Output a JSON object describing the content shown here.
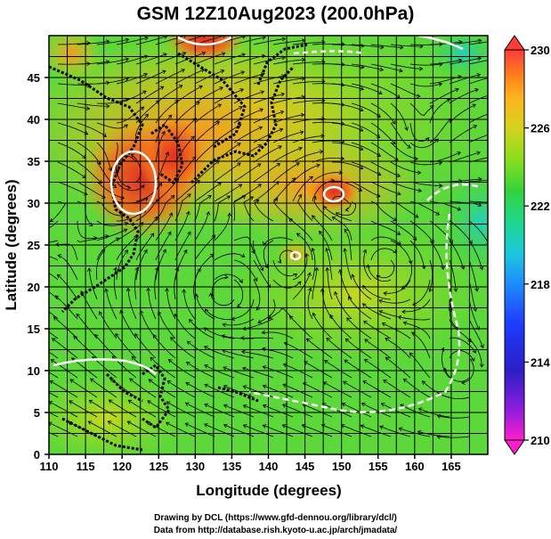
{
  "title": "GSM 12Z10Aug2023 (200.0hPa)",
  "map": {
    "xlabel": "Longitude (degrees)",
    "ylabel": "Latitude  (degrees)",
    "xticks": [
      110,
      115,
      120,
      125,
      130,
      135,
      140,
      145,
      150,
      155,
      160,
      165
    ],
    "yticks": [
      0,
      5,
      10,
      15,
      20,
      25,
      30,
      35,
      40,
      45
    ],
    "lon_range": [
      110,
      170
    ],
    "lat_range": [
      0,
      50
    ],
    "variable": "temperature-like field shaded with streamlines"
  },
  "colorbar": {
    "ticks": [
      230,
      226,
      222,
      218,
      214,
      210
    ],
    "range": [
      210,
      230
    ],
    "colors": [
      "#ff3c3c",
      "#ff7a1e",
      "#ffb21e",
      "#d6d21e",
      "#8ade1e",
      "#36d23c",
      "#1ed88c",
      "#1ec8dc",
      "#1e8cff",
      "#1e3cff",
      "#2c1ec8",
      "#8a1edc",
      "#ff1ecc"
    ]
  },
  "credits": {
    "line1": "Drawing by DCL (https://www.gfd-dennou.org/library/dcl/)",
    "line2": "Data from http://database.rish.kyoto-u.ac.jp/arch/jmadata/"
  }
}
